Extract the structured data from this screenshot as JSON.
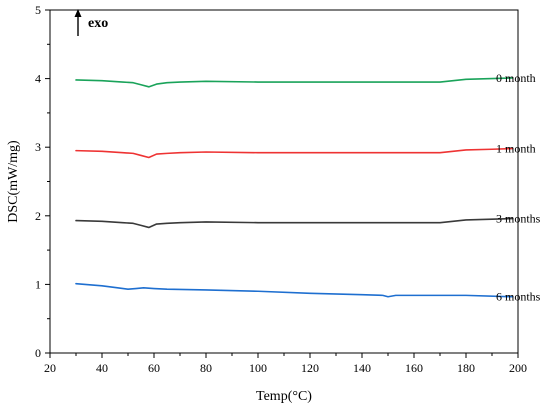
{
  "chart_data": {
    "type": "line",
    "title": "",
    "xlabel": "Temp(°C)",
    "ylabel": "DSC(mW/mg)",
    "xlim": [
      20,
      200
    ],
    "ylim": [
      0,
      5
    ],
    "xticks": [
      "20",
      "40",
      "60",
      "80",
      "100",
      "120",
      "140",
      "160",
      "180",
      "200"
    ],
    "yticks": [
      "0",
      "1",
      "2",
      "3",
      "4",
      "5"
    ],
    "grid": false,
    "legend": "none",
    "annotation": "exo",
    "series": [
      {
        "name": "0 month",
        "color": "#1aa35a",
        "x": [
          30,
          40,
          48,
          52,
          55,
          58,
          61,
          65,
          70,
          80,
          100,
          120,
          140,
          160,
          170,
          175,
          180,
          190,
          198
        ],
        "y": [
          3.98,
          3.97,
          3.95,
          3.94,
          3.91,
          3.88,
          3.92,
          3.94,
          3.95,
          3.96,
          3.95,
          3.95,
          3.95,
          3.95,
          3.95,
          3.97,
          3.99,
          4.0,
          4.01
        ]
      },
      {
        "name": "1 month",
        "color": "#ee3333",
        "x": [
          30,
          40,
          48,
          52,
          55,
          58,
          61,
          65,
          70,
          80,
          100,
          120,
          140,
          160,
          170,
          175,
          180,
          190,
          198
        ],
        "y": [
          2.95,
          2.94,
          2.92,
          2.91,
          2.88,
          2.85,
          2.9,
          2.91,
          2.92,
          2.93,
          2.92,
          2.92,
          2.92,
          2.92,
          2.92,
          2.94,
          2.96,
          2.97,
          2.98
        ]
      },
      {
        "name": "3 months",
        "color": "#3a3a3a",
        "x": [
          30,
          40,
          48,
          52,
          55,
          58,
          61,
          65,
          70,
          80,
          100,
          120,
          140,
          160,
          170,
          175,
          180,
          190,
          198
        ],
        "y": [
          1.93,
          1.92,
          1.9,
          1.89,
          1.86,
          1.83,
          1.88,
          1.89,
          1.9,
          1.91,
          1.9,
          1.9,
          1.9,
          1.9,
          1.9,
          1.92,
          1.94,
          1.95,
          1.96
        ]
      },
      {
        "name": "6 months",
        "color": "#1e6fd0",
        "x": [
          30,
          40,
          46,
          50,
          53,
          56,
          60,
          65,
          80,
          100,
          120,
          140,
          148,
          150,
          153,
          160,
          180,
          198
        ],
        "y": [
          1.01,
          0.98,
          0.95,
          0.93,
          0.94,
          0.95,
          0.94,
          0.93,
          0.92,
          0.9,
          0.87,
          0.85,
          0.84,
          0.82,
          0.84,
          0.84,
          0.84,
          0.82
        ]
      }
    ]
  }
}
